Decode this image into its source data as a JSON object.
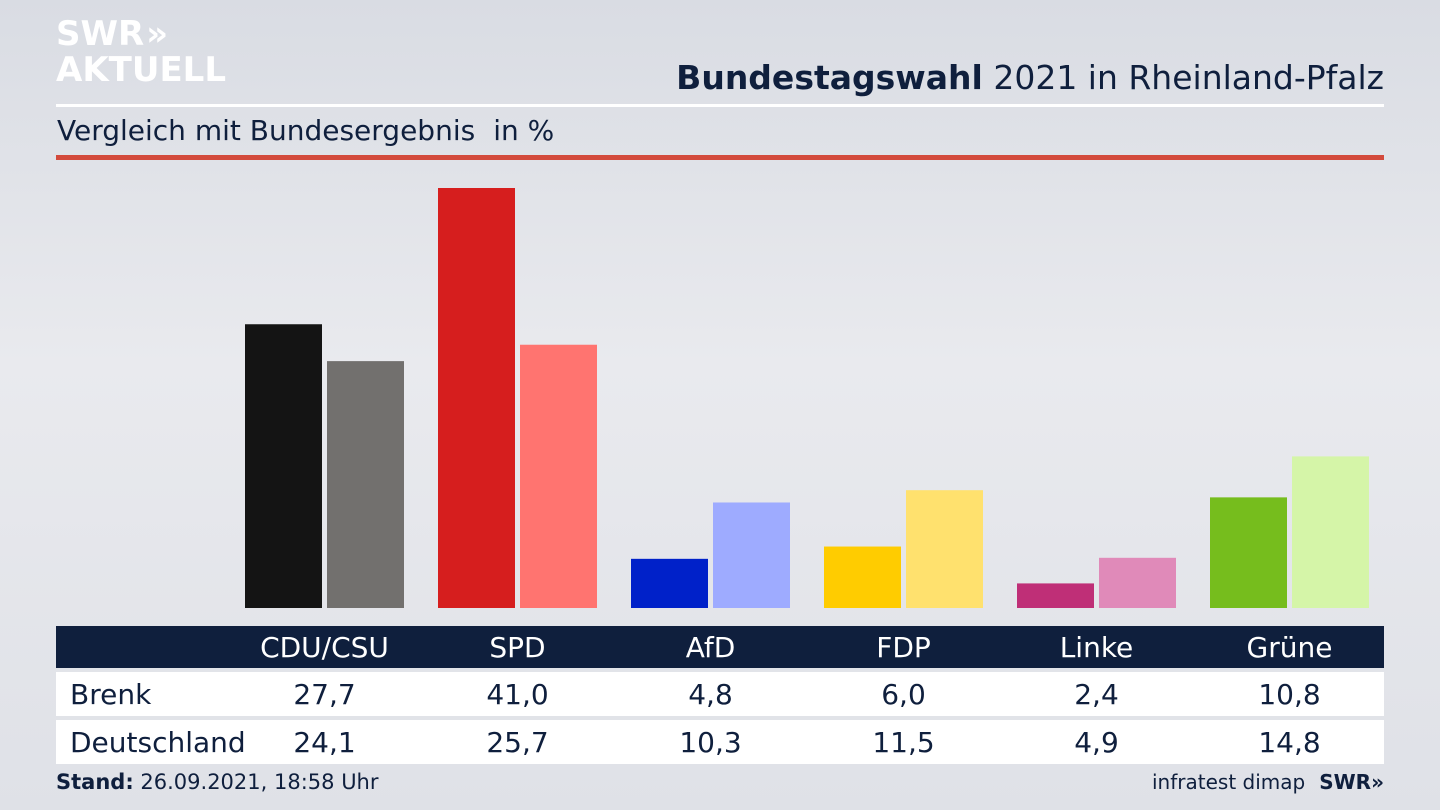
{
  "logo": {
    "line1": "SWR",
    "arrows": "»",
    "line2": "AKTUELL"
  },
  "title": {
    "bold": "Bundestagswahl",
    "rest": "2021 in Rheinland-Pfalz"
  },
  "subtitle": {
    "text": "Vergleich mit Bundesergebnis",
    "unit": "in %"
  },
  "chart_data": {
    "type": "bar",
    "title": "Bundestagswahl 2021 in Rheinland-Pfalz",
    "subtitle": "Vergleich mit Bundesergebnis",
    "unit": "in %",
    "categories": [
      "CDU/CSU",
      "SPD",
      "AfD",
      "FDP",
      "Linke",
      "Grüne"
    ],
    "series": [
      {
        "name": "Brenk",
        "values": [
          27.7,
          41.0,
          4.8,
          6.0,
          2.4,
          10.8
        ],
        "colors": [
          "#141414",
          "#d61e1e",
          "#0021c9",
          "#ffcc00",
          "#bf2f77",
          "#76bd1d"
        ]
      },
      {
        "name": "Deutschland",
        "values": [
          24.1,
          25.7,
          10.3,
          11.5,
          4.9,
          14.8
        ],
        "colors": [
          "#72706e",
          "#ff7470",
          "#9eabff",
          "#ffe16e",
          "#e08ab9",
          "#d5f5a8"
        ]
      }
    ],
    "value_labels": {
      "Brenk": [
        "27,7",
        "41,0",
        "4,8",
        "6,0",
        "2,4",
        "10,8"
      ],
      "Deutschland": [
        "24,1",
        "25,7",
        "10,3",
        "11,5",
        "4,9",
        "14,8"
      ]
    },
    "ylim": [
      0,
      41
    ],
    "grid": false,
    "legend": "table-below"
  },
  "footer": {
    "stand_label": "Stand:",
    "stand_value": "26.09.2021, 18:58 Uhr",
    "source": "infratest dimap",
    "brand": "SWR»"
  }
}
